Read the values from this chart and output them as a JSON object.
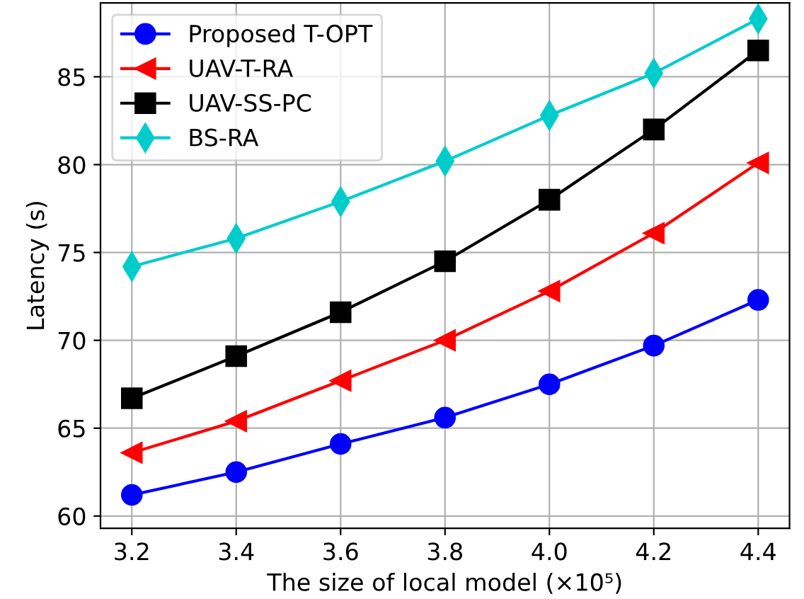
{
  "chart_data": {
    "type": "line",
    "xlabel": "The size of local model (×10⁵)",
    "ylabel": "Latency (s)",
    "x": [
      3.2,
      3.4,
      3.6,
      3.8,
      4.0,
      4.2,
      4.4
    ],
    "series": [
      {
        "name": "Proposed T-OPT",
        "color": "#0000ff",
        "marker": "circle",
        "values": [
          61.2,
          62.5,
          64.1,
          65.6,
          67.5,
          69.7,
          72.3
        ]
      },
      {
        "name": "UAV-T-RA",
        "color": "#ff0000",
        "marker": "triangle",
        "values": [
          63.6,
          65.4,
          67.7,
          70.0,
          72.8,
          76.1,
          80.1
        ]
      },
      {
        "name": "UAV-SS-PC",
        "color": "#000000",
        "marker": "square",
        "values": [
          66.7,
          69.1,
          71.6,
          74.5,
          78.0,
          82.0,
          86.5
        ]
      },
      {
        "name": "BS-RA",
        "color": "#00cccc",
        "marker": "diamond",
        "values": [
          74.2,
          75.8,
          77.9,
          80.2,
          82.8,
          85.2,
          88.3
        ]
      }
    ],
    "xlim": [
      3.14,
      4.46
    ],
    "ylim": [
      59.3,
      89.2
    ],
    "xticks": [
      {
        "value": 3.2,
        "label": "3.2"
      },
      {
        "value": 3.4,
        "label": "3.4"
      },
      {
        "value": 3.6,
        "label": "3.6"
      },
      {
        "value": 3.8,
        "label": "3.8"
      },
      {
        "value": 4.0,
        "label": "4.0"
      },
      {
        "value": 4.2,
        "label": "4.2"
      },
      {
        "value": 4.4,
        "label": "4.4"
      }
    ],
    "yticks": [
      60,
      65,
      70,
      75,
      80,
      85
    ],
    "grid": true,
    "legend": "top left",
    "line_style": "solid"
  }
}
